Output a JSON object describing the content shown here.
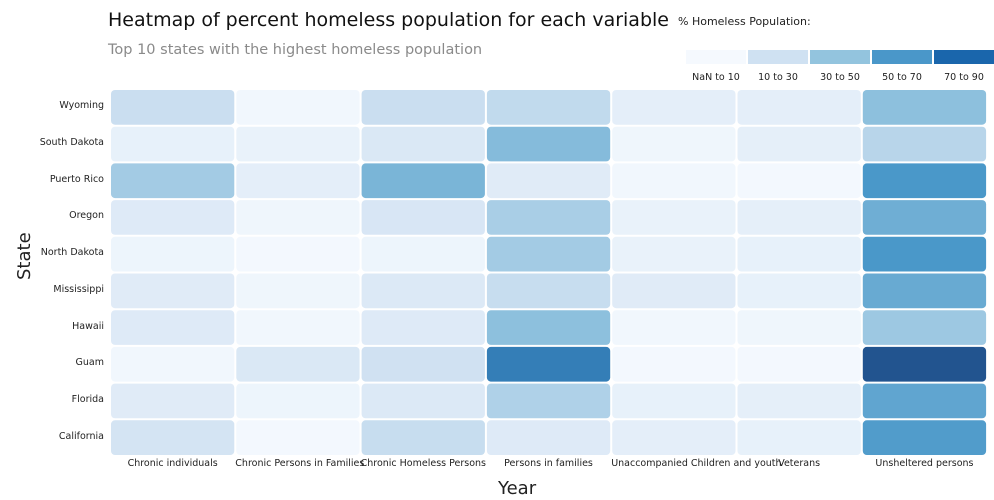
{
  "chart_data": {
    "type": "heatmap",
    "title": "Heatmap of percent homeless population for each variable",
    "subtitle": "Top 10 states with the highest homeless population",
    "xlabel": "Year",
    "ylabel": "State",
    "x": [
      "Chronic individuals",
      "Chronic Persons in Families",
      "Chronic Homeless Persons",
      "Persons in families",
      "Unaccompanied Children and youth",
      "Veterans",
      "Unsheltered persons"
    ],
    "y": [
      "Wyoming",
      "South Dakota",
      "Puerto Rico",
      "Oregon",
      "North Dakota",
      "Mississippi",
      "Hawaii",
      "Guam",
      "Florida",
      "California"
    ],
    "z": [
      [
        22,
        3,
        22,
        25,
        10,
        10,
        42
      ],
      [
        8,
        7,
        15,
        44,
        4,
        9,
        28
      ],
      [
        35,
        10,
        47,
        12,
        3,
        2,
        60
      ],
      [
        13,
        4,
        16,
        33,
        7,
        9,
        50
      ],
      [
        5,
        2,
        5,
        35,
        7,
        8,
        60
      ],
      [
        12,
        4,
        14,
        23,
        12,
        8,
        52
      ],
      [
        13,
        3,
        13,
        42,
        3,
        4,
        37
      ],
      [
        3,
        15,
        20,
        70,
        2,
        2,
        88
      ],
      [
        12,
        5,
        14,
        31,
        8,
        9,
        54
      ],
      [
        18,
        2,
        23,
        13,
        10,
        8,
        58
      ]
    ],
    "colorscale": "Blues",
    "legend": {
      "title": "% Homeless Population:",
      "position": "top-right",
      "bins": [
        {
          "label": "NaN to 10",
          "color": "#f5f9fe"
        },
        {
          "label": "10 to 30",
          "color": "#cfe1f2"
        },
        {
          "label": "30 to 50",
          "color": "#93c4de"
        },
        {
          "label": "50 to 70",
          "color": "#4a97c9"
        },
        {
          "label": "70 to 90",
          "color": "#1a66ac"
        }
      ]
    }
  }
}
